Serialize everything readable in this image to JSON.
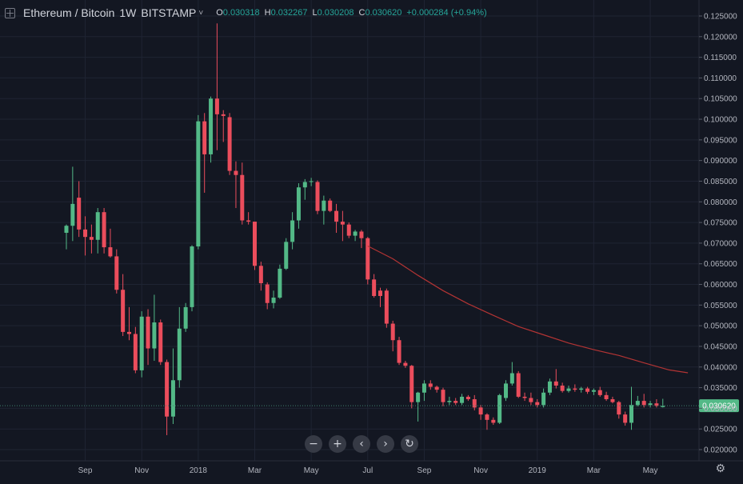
{
  "header": {
    "symbol": "Ethereum / Bitcoin",
    "interval": "1W",
    "exchange": "BITSTAMP",
    "caret": "˅",
    "o_label": "O",
    "o_value": "0.030318",
    "h_label": "H",
    "h_value": "0.032267",
    "l_label": "L",
    "l_value": "0.030208",
    "c_label": "C",
    "c_value": "0.030620",
    "change": "+0.000284 (+0.94%)"
  },
  "toolbar": {
    "zoom_out": "−",
    "zoom_in": "+",
    "scroll_left": "‹",
    "scroll_right": "›",
    "reset": "↻"
  },
  "settings_icon": "gear-icon",
  "colors": {
    "background": "#131722",
    "up": "#26a69a",
    "up_body": "#53b987",
    "down": "#eb4d5c",
    "ma_line": "#b33434",
    "grid": "#1f2433",
    "price_tag": "#53b987"
  },
  "chart_data": {
    "type": "candlestick",
    "title": "Ethereum / Bitcoin",
    "interval": "1W",
    "grid": true,
    "y_ticks": [
      "0.125000",
      "0.120000",
      "0.115000",
      "0.110000",
      "0.105000",
      "0.100000",
      "0.095000",
      "0.090000",
      "0.085000",
      "0.080000",
      "0.075000",
      "0.070000",
      "0.065000",
      "0.060000",
      "0.055000",
      "0.050000",
      "0.045000",
      "0.040000",
      "0.035000",
      "0.030000",
      "0.025000",
      "0.020000"
    ],
    "y_tick_values": [
      0.125,
      0.12,
      0.115,
      0.11,
      0.105,
      0.1,
      0.095,
      0.09,
      0.085,
      0.08,
      0.075,
      0.07,
      0.065,
      0.06,
      0.055,
      0.05,
      0.045,
      0.04,
      0.035,
      0.03,
      0.025,
      0.02
    ],
    "x_ticks": [
      {
        "label": "Sep",
        "index": 3
      },
      {
        "label": "Nov",
        "index": 12
      },
      {
        "label": "2018",
        "index": 21
      },
      {
        "label": "Mar",
        "index": 30
      },
      {
        "label": "May",
        "index": 39
      },
      {
        "label": "Jul",
        "index": 48
      },
      {
        "label": "Sep",
        "index": 57
      },
      {
        "label": "Nov",
        "index": 66
      },
      {
        "label": "2019",
        "index": 75
      },
      {
        "label": "Mar",
        "index": 84
      },
      {
        "label": "May",
        "index": 93
      }
    ],
    "last_price": "0.030620",
    "last_price_value": 0.03062,
    "candles": [
      {
        "o": 0.0725,
        "h": 0.0745,
        "l": 0.0685,
        "c": 0.0742
      },
      {
        "o": 0.0742,
        "h": 0.0885,
        "l": 0.0705,
        "c": 0.0795
      },
      {
        "o": 0.081,
        "h": 0.085,
        "l": 0.0715,
        "c": 0.0733
      },
      {
        "o": 0.0733,
        "h": 0.0765,
        "l": 0.067,
        "c": 0.0715
      },
      {
        "o": 0.0715,
        "h": 0.0745,
        "l": 0.0675,
        "c": 0.0708
      },
      {
        "o": 0.0708,
        "h": 0.0785,
        "l": 0.0675,
        "c": 0.0775
      },
      {
        "o": 0.0775,
        "h": 0.0785,
        "l": 0.0675,
        "c": 0.069
      },
      {
        "o": 0.069,
        "h": 0.0735,
        "l": 0.0665,
        "c": 0.0668
      },
      {
        "o": 0.0668,
        "h": 0.0685,
        "l": 0.0578,
        "c": 0.0587
      },
      {
        "o": 0.0587,
        "h": 0.0625,
        "l": 0.0475,
        "c": 0.0485
      },
      {
        "o": 0.0485,
        "h": 0.0545,
        "l": 0.0465,
        "c": 0.048
      },
      {
        "o": 0.048,
        "h": 0.0497,
        "l": 0.0385,
        "c": 0.0392
      },
      {
        "o": 0.0392,
        "h": 0.0535,
        "l": 0.0375,
        "c": 0.0522
      },
      {
        "o": 0.0522,
        "h": 0.054,
        "l": 0.0405,
        "c": 0.0445
      },
      {
        "o": 0.0445,
        "h": 0.0575,
        "l": 0.0415,
        "c": 0.0508
      },
      {
        "o": 0.0508,
        "h": 0.0515,
        "l": 0.0405,
        "c": 0.0412
      },
      {
        "o": 0.0412,
        "h": 0.0418,
        "l": 0.0235,
        "c": 0.028
      },
      {
        "o": 0.028,
        "h": 0.0445,
        "l": 0.0262,
        "c": 0.0368
      },
      {
        "o": 0.0368,
        "h": 0.0545,
        "l": 0.035,
        "c": 0.0493
      },
      {
        "o": 0.0493,
        "h": 0.0555,
        "l": 0.0485,
        "c": 0.0545
      },
      {
        "o": 0.0545,
        "h": 0.0695,
        "l": 0.0535,
        "c": 0.0692
      },
      {
        "o": 0.0692,
        "h": 0.101,
        "l": 0.0685,
        "c": 0.0995
      },
      {
        "o": 0.0995,
        "h": 0.1015,
        "l": 0.0822,
        "c": 0.0915
      },
      {
        "o": 0.0915,
        "h": 0.1055,
        "l": 0.0895,
        "c": 0.105
      },
      {
        "o": 0.105,
        "h": 0.1232,
        "l": 0.0925,
        "c": 0.1012
      },
      {
        "o": 0.1012,
        "h": 0.1022,
        "l": 0.0945,
        "c": 0.1008
      },
      {
        "o": 0.1005,
        "h": 0.1015,
        "l": 0.0865,
        "c": 0.0875
      },
      {
        "o": 0.0875,
        "h": 0.0898,
        "l": 0.0785,
        "c": 0.0865
      },
      {
        "o": 0.0865,
        "h": 0.0895,
        "l": 0.0745,
        "c": 0.0755
      },
      {
        "o": 0.0755,
        "h": 0.0775,
        "l": 0.0745,
        "c": 0.0752
      },
      {
        "o": 0.0752,
        "h": 0.0752,
        "l": 0.0635,
        "c": 0.0645
      },
      {
        "o": 0.0645,
        "h": 0.0655,
        "l": 0.0585,
        "c": 0.0603
      },
      {
        "o": 0.06,
        "h": 0.0605,
        "l": 0.054,
        "c": 0.0555
      },
      {
        "o": 0.0555,
        "h": 0.0585,
        "l": 0.0542,
        "c": 0.0568
      },
      {
        "o": 0.0568,
        "h": 0.0648,
        "l": 0.0565,
        "c": 0.0638
      },
      {
        "o": 0.0638,
        "h": 0.0712,
        "l": 0.0635,
        "c": 0.0703
      },
      {
        "o": 0.0703,
        "h": 0.0775,
        "l": 0.0685,
        "c": 0.0755
      },
      {
        "o": 0.0755,
        "h": 0.0845,
        "l": 0.0735,
        "c": 0.0835
      },
      {
        "o": 0.0835,
        "h": 0.0855,
        "l": 0.0805,
        "c": 0.0848
      },
      {
        "o": 0.0848,
        "h": 0.0858,
        "l": 0.0838,
        "c": 0.085
      },
      {
        "o": 0.0848,
        "h": 0.0852,
        "l": 0.077,
        "c": 0.0778
      },
      {
        "o": 0.0778,
        "h": 0.0815,
        "l": 0.0745,
        "c": 0.0803
      },
      {
        "o": 0.0803,
        "h": 0.0808,
        "l": 0.0775,
        "c": 0.0778
      },
      {
        "o": 0.0778,
        "h": 0.0795,
        "l": 0.0725,
        "c": 0.0752
      },
      {
        "o": 0.0752,
        "h": 0.0778,
        "l": 0.0705,
        "c": 0.0745
      },
      {
        "o": 0.0745,
        "h": 0.075,
        "l": 0.0712,
        "c": 0.0718
      },
      {
        "o": 0.0718,
        "h": 0.0732,
        "l": 0.0705,
        "c": 0.0728
      },
      {
        "o": 0.0728,
        "h": 0.0732,
        "l": 0.0688,
        "c": 0.0712
      },
      {
        "o": 0.0712,
        "h": 0.0715,
        "l": 0.06,
        "c": 0.0612
      },
      {
        "o": 0.0612,
        "h": 0.0625,
        "l": 0.0568,
        "c": 0.0572
      },
      {
        "o": 0.0585,
        "h": 0.0592,
        "l": 0.0545,
        "c": 0.0572
      },
      {
        "o": 0.0585,
        "h": 0.059,
        "l": 0.0495,
        "c": 0.0505
      },
      {
        "o": 0.0505,
        "h": 0.0512,
        "l": 0.0438,
        "c": 0.0465
      },
      {
        "o": 0.0465,
        "h": 0.0473,
        "l": 0.0405,
        "c": 0.041
      },
      {
        "o": 0.041,
        "h": 0.0415,
        "l": 0.0398,
        "c": 0.0403
      },
      {
        "o": 0.0403,
        "h": 0.0405,
        "l": 0.03,
        "c": 0.0315
      },
      {
        "o": 0.0315,
        "h": 0.034,
        "l": 0.0268,
        "c": 0.0338
      },
      {
        "o": 0.0338,
        "h": 0.0368,
        "l": 0.0318,
        "c": 0.036
      },
      {
        "o": 0.036,
        "h": 0.0368,
        "l": 0.0345,
        "c": 0.0352
      },
      {
        "o": 0.0352,
        "h": 0.0355,
        "l": 0.0338,
        "c": 0.0345
      },
      {
        "o": 0.0345,
        "h": 0.035,
        "l": 0.0305,
        "c": 0.0315
      },
      {
        "o": 0.0315,
        "h": 0.0328,
        "l": 0.0308,
        "c": 0.0318
      },
      {
        "o": 0.0318,
        "h": 0.0325,
        "l": 0.0308,
        "c": 0.0313
      },
      {
        "o": 0.0313,
        "h": 0.0335,
        "l": 0.0308,
        "c": 0.0328
      },
      {
        "o": 0.0328,
        "h": 0.0332,
        "l": 0.0318,
        "c": 0.0322
      },
      {
        "o": 0.0322,
        "h": 0.0332,
        "l": 0.0295,
        "c": 0.0302
      },
      {
        "o": 0.0302,
        "h": 0.0308,
        "l": 0.0272,
        "c": 0.0285
      },
      {
        "o": 0.0285,
        "h": 0.0288,
        "l": 0.0248,
        "c": 0.0272
      },
      {
        "o": 0.0272,
        "h": 0.0278,
        "l": 0.026,
        "c": 0.0265
      },
      {
        "o": 0.0265,
        "h": 0.0335,
        "l": 0.0262,
        "c": 0.0332
      },
      {
        "o": 0.0325,
        "h": 0.0368,
        "l": 0.0318,
        "c": 0.036
      },
      {
        "o": 0.036,
        "h": 0.0412,
        "l": 0.0355,
        "c": 0.0385
      },
      {
        "o": 0.0385,
        "h": 0.039,
        "l": 0.0325,
        "c": 0.0328
      },
      {
        "o": 0.0328,
        "h": 0.0338,
        "l": 0.0318,
        "c": 0.0325
      },
      {
        "o": 0.0325,
        "h": 0.0338,
        "l": 0.0308,
        "c": 0.0315
      },
      {
        "o": 0.0315,
        "h": 0.0322,
        "l": 0.0302,
        "c": 0.0308
      },
      {
        "o": 0.0308,
        "h": 0.0348,
        "l": 0.0302,
        "c": 0.0338
      },
      {
        "o": 0.0338,
        "h": 0.0372,
        "l": 0.0332,
        "c": 0.0365
      },
      {
        "o": 0.0365,
        "h": 0.0395,
        "l": 0.0348,
        "c": 0.0355
      },
      {
        "o": 0.0355,
        "h": 0.0362,
        "l": 0.0338,
        "c": 0.0342
      },
      {
        "o": 0.0342,
        "h": 0.0355,
        "l": 0.0338,
        "c": 0.0348
      },
      {
        "o": 0.0348,
        "h": 0.0358,
        "l": 0.034,
        "c": 0.0345
      },
      {
        "o": 0.0345,
        "h": 0.0352,
        "l": 0.0338,
        "c": 0.0348
      },
      {
        "o": 0.0348,
        "h": 0.0352,
        "l": 0.0335,
        "c": 0.034
      },
      {
        "o": 0.034,
        "h": 0.0348,
        "l": 0.0332,
        "c": 0.0344
      },
      {
        "o": 0.0344,
        "h": 0.0352,
        "l": 0.0328,
        "c": 0.0332
      },
      {
        "o": 0.0332,
        "h": 0.034,
        "l": 0.0318,
        "c": 0.0322
      },
      {
        "o": 0.0322,
        "h": 0.0328,
        "l": 0.0312,
        "c": 0.0315
      },
      {
        "o": 0.0315,
        "h": 0.0318,
        "l": 0.0275,
        "c": 0.0285
      },
      {
        "o": 0.0285,
        "h": 0.0292,
        "l": 0.0258,
        "c": 0.0265
      },
      {
        "o": 0.0265,
        "h": 0.0352,
        "l": 0.0248,
        "c": 0.0308
      },
      {
        "o": 0.0308,
        "h": 0.033,
        "l": 0.0305,
        "c": 0.0318
      },
      {
        "o": 0.0318,
        "h": 0.0335,
        "l": 0.0302,
        "c": 0.0308
      },
      {
        "o": 0.0308,
        "h": 0.0318,
        "l": 0.0302,
        "c": 0.0312
      },
      {
        "o": 0.0312,
        "h": 0.0322,
        "l": 0.0302,
        "c": 0.0306
      },
      {
        "o": 0.0303,
        "h": 0.0323,
        "l": 0.0302,
        "c": 0.0306
      }
    ],
    "ma_line": [
      {
        "index": 48,
        "value": 0.0693
      },
      {
        "index": 52,
        "value": 0.0662
      },
      {
        "index": 56,
        "value": 0.0622
      },
      {
        "index": 60,
        "value": 0.0585
      },
      {
        "index": 64,
        "value": 0.0553
      },
      {
        "index": 68,
        "value": 0.0525
      },
      {
        "index": 72,
        "value": 0.0498
      },
      {
        "index": 76,
        "value": 0.0478
      },
      {
        "index": 80,
        "value": 0.0458
      },
      {
        "index": 84,
        "value": 0.0442
      },
      {
        "index": 88,
        "value": 0.0428
      },
      {
        "index": 92,
        "value": 0.041
      },
      {
        "index": 96,
        "value": 0.0393
      },
      {
        "index": 99,
        "value": 0.0386
      }
    ]
  }
}
